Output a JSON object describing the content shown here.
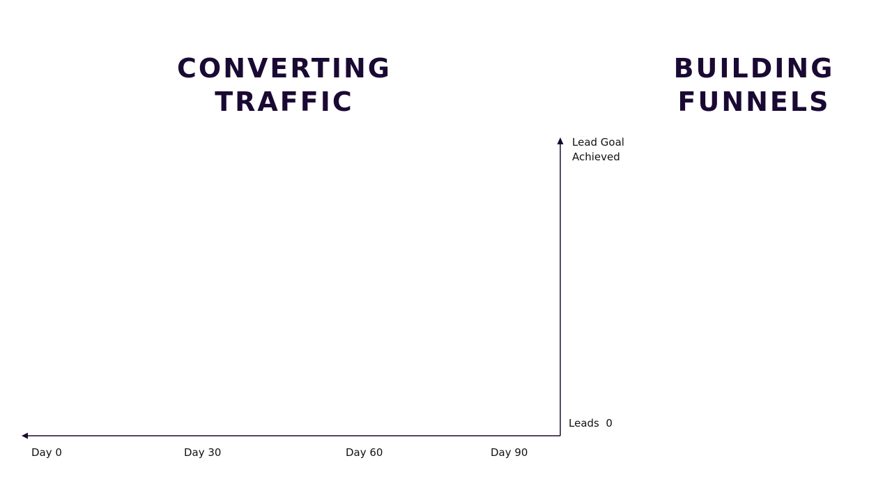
{
  "headings": {
    "left": {
      "line1": "CONVERTING",
      "line2": "TRAFFIC"
    },
    "right": {
      "line1": "BUILDING",
      "line2": "FUNNELS"
    }
  },
  "vertical_axis": {
    "top_label_line1": "Lead Goal",
    "top_label_line2": "Achieved",
    "bottom_label": "Leads",
    "bottom_value": "0"
  },
  "horizontal_axis": {
    "ticks": [
      "Day 0",
      "Day 30",
      "Day 60",
      "Day 90"
    ]
  },
  "colors": {
    "heading": "#1a0933",
    "axis": "#1a0933",
    "text": "#111111",
    "background": "#ffffff"
  }
}
